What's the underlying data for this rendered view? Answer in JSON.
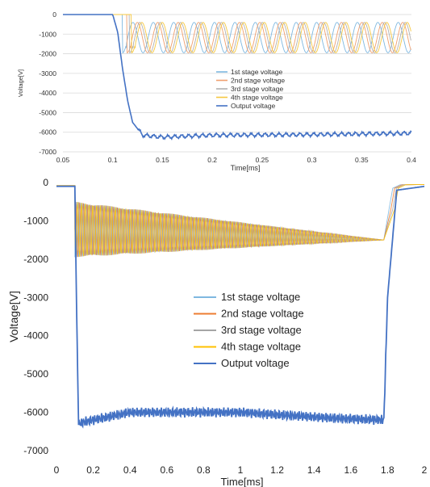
{
  "chart_data": [
    {
      "type": "line",
      "xlabel": "Time[ms]",
      "ylabel": "Voltage[V]",
      "xlim": [
        0.05,
        0.4
      ],
      "ylim": [
        -7000,
        0
      ],
      "x_ticks": [
        "0.05",
        "0.1",
        "0.15",
        "0.2",
        "0.25",
        "0.3",
        "0.35",
        "0.4"
      ],
      "y_ticks": [
        "0",
        "-1000",
        "-2000",
        "-3000",
        "-4000",
        "-5000",
        "-6000",
        "-7000"
      ],
      "grid": true,
      "legend_position": "center",
      "series": [
        {
          "name": "1st stage voltage",
          "color": "#7fb8e0",
          "x": [
            0.05,
            0.1,
            0.112,
            0.125,
            0.4
          ],
          "y": [
            0,
            0,
            -1950,
            "oscillating between -1950 and -400 (period ~0.02 ms)",
            "oscillating"
          ]
        },
        {
          "name": "2nd stage voltage",
          "color": "#f0a070",
          "x": [
            0.05,
            0.115,
            0.4
          ],
          "y": [
            0,
            0,
            "oscillating between -1950 and -400"
          ]
        },
        {
          "name": "3rd stage voltage",
          "color": "#b0b0b0",
          "x": [
            0.05,
            0.117,
            0.4
          ],
          "y": [
            0,
            0,
            "oscillating between -1950 and -400"
          ]
        },
        {
          "name": "4th stage voltage",
          "color": "#f5c842",
          "x": [
            0.05,
            0.118,
            0.4
          ],
          "y": [
            0,
            0,
            "oscillating between -1950 and -400"
          ]
        },
        {
          "name": "Output voltage",
          "color": "#4472c4",
          "x": [
            0.05,
            0.1,
            0.105,
            0.11,
            0.115,
            0.12,
            0.13,
            0.15,
            0.2,
            0.3,
            0.4
          ],
          "y": [
            0,
            0,
            -900,
            -2800,
            -4400,
            -5500,
            -6150,
            -6250,
            -6150,
            -6120,
            -6050
          ]
        }
      ]
    },
    {
      "type": "line",
      "xlabel": "Time[ms]",
      "ylabel": "Voltage[V]",
      "xlim": [
        0,
        2
      ],
      "ylim": [
        -7000,
        0
      ],
      "x_ticks": [
        "0",
        "0.2",
        "0.4",
        "0.6",
        "0.8",
        "1",
        "1.2",
        "1.4",
        "1.6",
        "1.8",
        "2"
      ],
      "y_ticks": [
        "0",
        "-1000",
        "-2000",
        "-3000",
        "-4000",
        "-5000",
        "-6000",
        "-7000"
      ],
      "grid": false,
      "legend_position": "center",
      "series": [
        {
          "name": "1st stage voltage",
          "color": "#7fb8e0"
        },
        {
          "name": "2nd stage voltage",
          "color": "#ed7d31"
        },
        {
          "name": "3rd stage voltage",
          "color": "#a5a5a5"
        },
        {
          "name": "4th stage voltage",
          "color": "#ffc000"
        },
        {
          "name": "Output voltage",
          "color": "#4472c4",
          "x": [
            0,
            0.1,
            0.11,
            0.12,
            0.15,
            0.4,
            1.0,
            1.5,
            1.78,
            1.8,
            1.85,
            2.0
          ],
          "y": [
            -100,
            -100,
            -3500,
            -6300,
            -6250,
            -6000,
            -6000,
            -6150,
            -6200,
            -3000,
            -200,
            -100
          ]
        }
      ],
      "envelope": {
        "description": "stage voltages oscillate rapidly between an upper and lower bound",
        "x": [
          0.1,
          1.78
        ],
        "upper": [
          -500,
          -1500
        ],
        "lower": [
          -1950,
          -1500
        ]
      }
    }
  ]
}
